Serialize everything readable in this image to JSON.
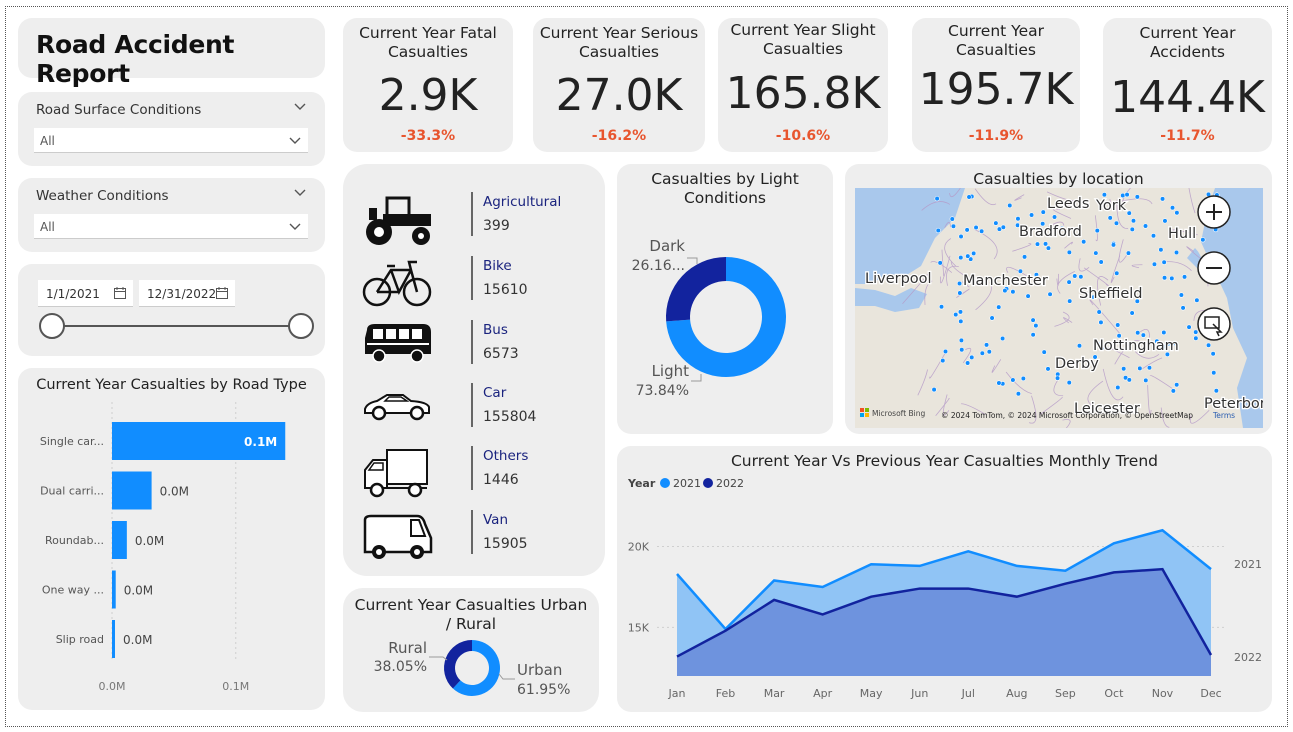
{
  "title": "Road Accident Report",
  "slicers": {
    "road_surface": {
      "label": "Road Surface Conditions",
      "value": "All"
    },
    "weather": {
      "label": "Weather Conditions",
      "value": "All"
    },
    "date_start": "1/1/2021",
    "date_end": "12/31/2022"
  },
  "kpis": [
    {
      "title": "Current Year Fatal Casualties",
      "value": "2.9K",
      "delta": "-33.3%"
    },
    {
      "title": "Current Year Serious Casualties",
      "value": "27.0K",
      "delta": "-16.2%"
    },
    {
      "title": "Current Year Slight Casualties",
      "value": "165.8K",
      "delta": "-10.6%"
    },
    {
      "title": "Current Year Casualties",
      "value": "195.7K",
      "delta": "-11.9%"
    },
    {
      "title": "Current Year Accidents",
      "value": "144.4K",
      "delta": "-11.7%"
    }
  ],
  "vehicles": [
    {
      "name": "Agricultural",
      "value": "399",
      "icon": "tractor-icon"
    },
    {
      "name": "Bike",
      "value": "15610",
      "icon": "bicycle-icon"
    },
    {
      "name": "Bus",
      "value": "6573",
      "icon": "bus-icon"
    },
    {
      "name": "Car",
      "value": "155804",
      "icon": "car-icon"
    },
    {
      "name": "Others",
      "value": "1446",
      "icon": "truck-icon"
    },
    {
      "name": "Van",
      "value": "15905",
      "icon": "van-icon"
    }
  ],
  "colors": {
    "accent": "#118dff",
    "dark": "#12239e",
    "delta": "#e8552e",
    "card": "#eeeeee"
  },
  "map": {
    "title": "Casualties by location",
    "cities": [
      "Leeds",
      "York",
      "Bradford",
      "Hull",
      "Liverpool",
      "Manchester",
      "Sheffield",
      "Nottingham",
      "Derby",
      "Leicester",
      "Peterborou"
    ],
    "attribution": "© 2024 TomTom, © 2024 Microsoft Corporation, © OpenStreetMap",
    "terms": "Terms",
    "brand": "Microsoft Bing"
  },
  "chart_data": [
    {
      "type": "bar",
      "title": "Current Year Casualties by Road Type",
      "categories": [
        "Single car...",
        "Dual carri...",
        "Roundab...",
        "One way ...",
        "Slip road"
      ],
      "values": [
        0.14,
        0.032,
        0.012,
        0.003,
        0.002
      ],
      "data_labels": [
        "0.1M",
        "0.0M",
        "0.0M",
        "0.0M",
        "0.0M"
      ],
      "x_ticks": [
        "0.0M",
        "0.1M"
      ],
      "xlim": [
        0,
        0.16
      ]
    },
    {
      "type": "pie",
      "title": "Casualties by Light Conditions",
      "slices": [
        {
          "label": "Dark",
          "value": 26.16,
          "display": "26.16..."
        },
        {
          "label": "Light",
          "value": 73.84,
          "display": "73.84%"
        }
      ]
    },
    {
      "type": "pie",
      "title": "Current Year Casualties Urban / Rural",
      "slices": [
        {
          "label": "Rural",
          "value": 38.05,
          "display": "38.05%"
        },
        {
          "label": "Urban",
          "value": 61.95,
          "display": "61.95%"
        }
      ]
    },
    {
      "type": "area",
      "title": "Current Year Vs Previous Year Casualties Monthly Trend",
      "legend_title": "Year",
      "categories": [
        "Jan",
        "Feb",
        "Mar",
        "Apr",
        "May",
        "Jun",
        "Jul",
        "Aug",
        "Sep",
        "Oct",
        "Nov",
        "Dec"
      ],
      "series": [
        {
          "name": "2021",
          "values": [
            18300,
            14900,
            17900,
            17500,
            18900,
            18800,
            19700,
            18800,
            18500,
            20200,
            21000,
            18600
          ]
        },
        {
          "name": "2022",
          "values": [
            13200,
            14800,
            16700,
            15800,
            16900,
            17400,
            17400,
            16900,
            17700,
            18400,
            18600,
            13300
          ]
        }
      ],
      "y_ticks": [
        {
          "value": 20000,
          "label": "20K"
        },
        {
          "value": 15000,
          "label": "15K"
        }
      ],
      "ylim": [
        12000,
        22500
      ],
      "end_labels": [
        "2021",
        "2022"
      ]
    }
  ]
}
